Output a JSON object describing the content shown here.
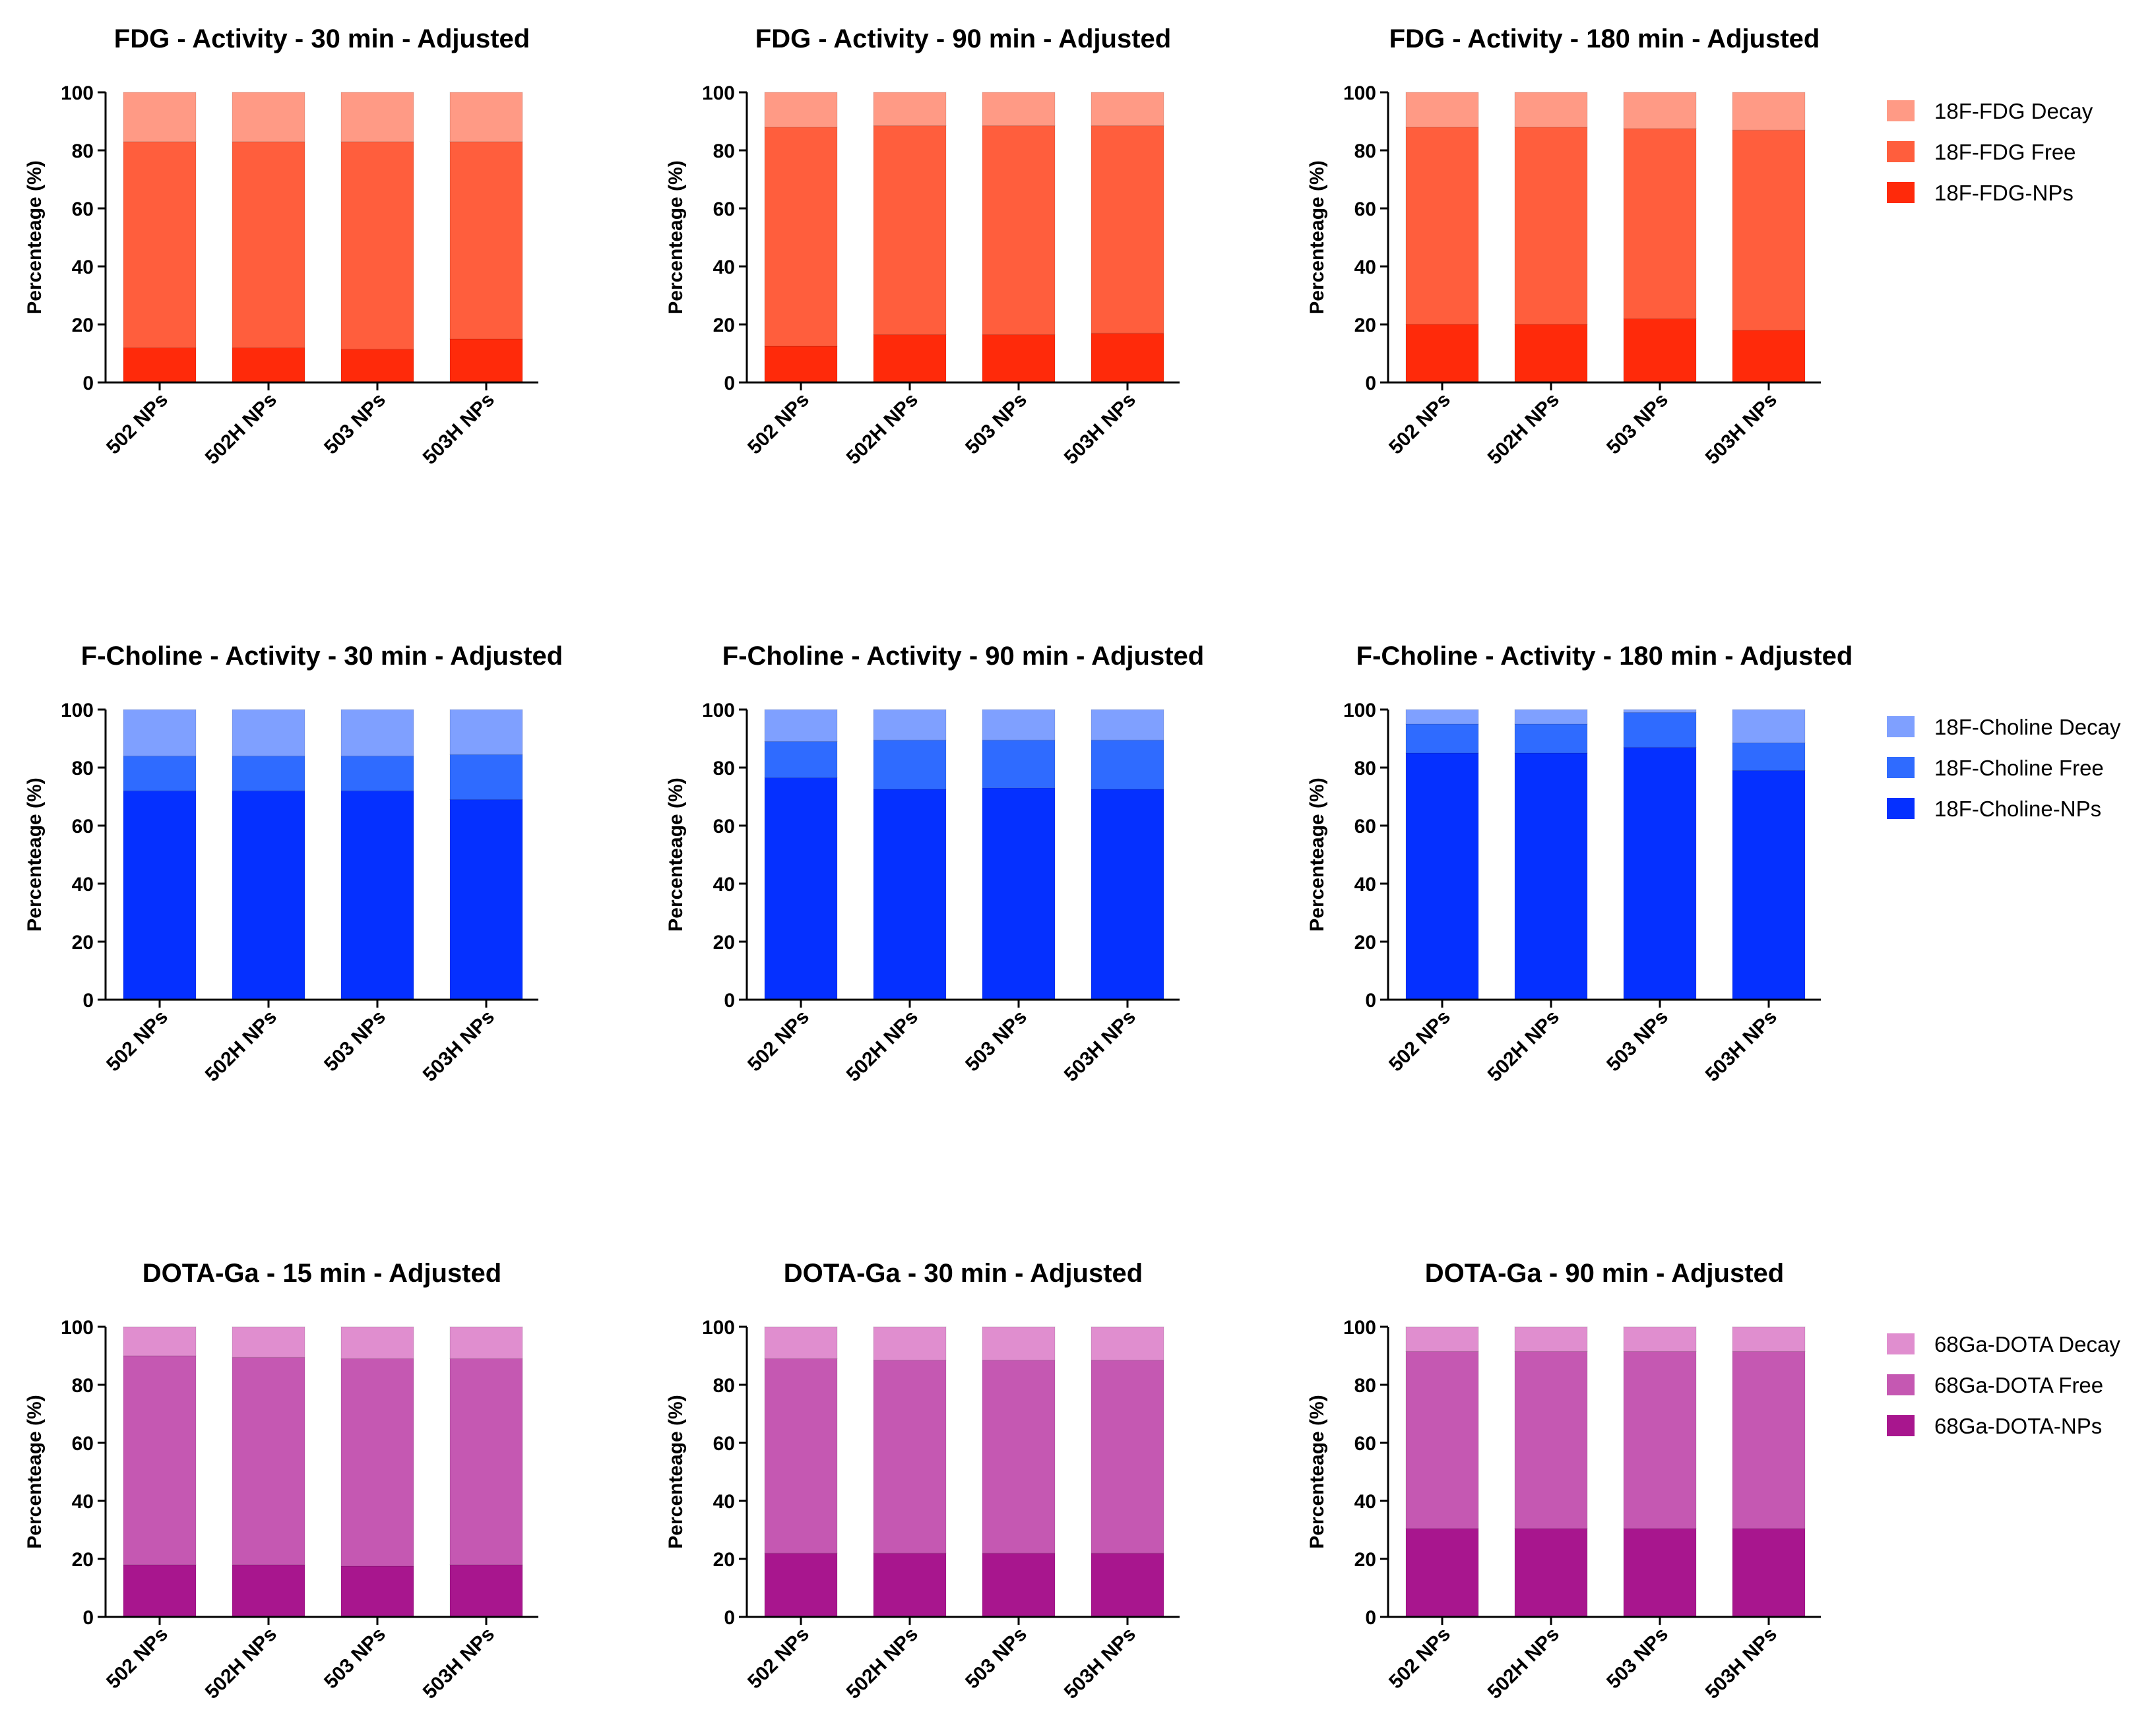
{
  "figure": {
    "ylabel": "Percenteage (%)",
    "categories": [
      "502 NPs",
      "502H NPs",
      "503 NPs",
      "503H NPs"
    ],
    "yticks": [
      0,
      20,
      40,
      60,
      80,
      100
    ]
  },
  "legends": [
    {
      "items": [
        {
          "label": "18F-FDG Decay",
          "color": "#FF9A85"
        },
        {
          "label": "18F-FDG Free",
          "color": "#FF5E3D"
        },
        {
          "label": "18F-FDG-NPs",
          "color": "#FF2A0A"
        }
      ]
    },
    {
      "items": [
        {
          "label": "18F-Choline Decay",
          "color": "#7FA0FF"
        },
        {
          "label": "18F-Choline Free",
          "color": "#2F6BFF"
        },
        {
          "label": "18F-Choline-NPs",
          "color": "#0530FF"
        }
      ]
    },
    {
      "items": [
        {
          "label": "68Ga-DOTA Decay",
          "color": "#E08ECF"
        },
        {
          "label": "68Ga-DOTA Free",
          "color": "#C558B2"
        },
        {
          "label": "68Ga-DOTA-NPs",
          "color": "#A8168E"
        }
      ]
    }
  ],
  "chart_data": [
    {
      "type": "bar",
      "stacked": true,
      "title": "FDG - Activity - 30 min - Adjusted",
      "ylabel": "Percenteage (%)",
      "ylim": [
        0,
        100
      ],
      "categories": [
        "502 NPs",
        "502H NPs",
        "503 NPs",
        "503H NPs"
      ],
      "series": [
        {
          "name": "18F-FDG-NPs",
          "color": "#FF2A0A",
          "values": [
            12,
            12,
            11.5,
            15
          ]
        },
        {
          "name": "18F-FDG Free",
          "color": "#FF5E3D",
          "values": [
            71,
            71,
            71.5,
            68
          ]
        },
        {
          "name": "18F-FDG Decay",
          "color": "#FF9A85",
          "values": [
            17,
            17,
            17,
            17
          ]
        }
      ]
    },
    {
      "type": "bar",
      "stacked": true,
      "title": "FDG - Activity - 90 min - Adjusted",
      "ylabel": "Percenteage (%)",
      "ylim": [
        0,
        100
      ],
      "categories": [
        "502 NPs",
        "502H NPs",
        "503 NPs",
        "503H NPs"
      ],
      "series": [
        {
          "name": "18F-FDG-NPs",
          "color": "#FF2A0A",
          "values": [
            12.5,
            16.5,
            16.5,
            17
          ]
        },
        {
          "name": "18F-FDG Free",
          "color": "#FF5E3D",
          "values": [
            75.5,
            72,
            72,
            71.5
          ]
        },
        {
          "name": "18F-FDG Decay",
          "color": "#FF9A85",
          "values": [
            12,
            11.5,
            11.5,
            11.5
          ]
        }
      ]
    },
    {
      "type": "bar",
      "stacked": true,
      "title": "FDG - Activity - 180 min - Adjusted",
      "ylabel": "Percenteage (%)",
      "ylim": [
        0,
        100
      ],
      "categories": [
        "502 NPs",
        "502H NPs",
        "503 NPs",
        "503H NPs"
      ],
      "series": [
        {
          "name": "18F-FDG-NPs",
          "color": "#FF2A0A",
          "values": [
            20,
            20,
            22,
            18
          ]
        },
        {
          "name": "18F-FDG Free",
          "color": "#FF5E3D",
          "values": [
            68,
            68,
            65.5,
            69
          ]
        },
        {
          "name": "18F-FDG Decay",
          "color": "#FF9A85",
          "values": [
            12,
            12,
            12.5,
            13
          ]
        }
      ]
    },
    {
      "type": "bar",
      "stacked": true,
      "title": "F-Choline - Activity - 30 min - Adjusted",
      "ylabel": "Percenteage (%)",
      "ylim": [
        0,
        100
      ],
      "categories": [
        "502 NPs",
        "502H NPs",
        "503 NPs",
        "503H NPs"
      ],
      "series": [
        {
          "name": "18F-Choline-NPs",
          "color": "#0530FF",
          "values": [
            72,
            72,
            72,
            69
          ]
        },
        {
          "name": "18F-Choline Free",
          "color": "#2F6BFF",
          "values": [
            12,
            12,
            12,
            15.5
          ]
        },
        {
          "name": "18F-Choline Decay",
          "color": "#7FA0FF",
          "values": [
            16,
            16,
            16,
            15.5
          ]
        }
      ]
    },
    {
      "type": "bar",
      "stacked": true,
      "title": "F-Choline - Activity - 90 min - Adjusted",
      "ylabel": "Percenteage (%)",
      "ylim": [
        0,
        100
      ],
      "categories": [
        "502 NPs",
        "502H NPs",
        "503 NPs",
        "503H NPs"
      ],
      "series": [
        {
          "name": "18F-Choline-NPs",
          "color": "#0530FF",
          "values": [
            76.5,
            72.5,
            73,
            72.5
          ]
        },
        {
          "name": "18F-Choline Free",
          "color": "#2F6BFF",
          "values": [
            12.5,
            17,
            16.5,
            17
          ]
        },
        {
          "name": "18F-Choline Decay",
          "color": "#7FA0FF",
          "values": [
            11,
            10.5,
            10.5,
            10.5
          ]
        }
      ]
    },
    {
      "type": "bar",
      "stacked": true,
      "title": "F-Choline - Activity - 180 min - Adjusted",
      "ylabel": "Percenteage (%)",
      "ylim": [
        0,
        100
      ],
      "categories": [
        "502 NPs",
        "502H NPs",
        "503 NPs",
        "503H NPs"
      ],
      "series": [
        {
          "name": "18F-Choline-NPs",
          "color": "#0530FF",
          "values": [
            85,
            85,
            87,
            79
          ]
        },
        {
          "name": "18F-Choline Free",
          "color": "#2F6BFF",
          "values": [
            10,
            10,
            12,
            9.5
          ]
        },
        {
          "name": "18F-Choline Decay",
          "color": "#7FA0FF",
          "values": [
            5,
            5,
            1,
            11.5
          ]
        }
      ]
    },
    {
      "type": "bar",
      "stacked": true,
      "title": "DOTA-Ga - 15 min - Adjusted",
      "ylabel": "Percenteage (%)",
      "ylim": [
        0,
        100
      ],
      "categories": [
        "502 NPs",
        "502H NPs",
        "503 NPs",
        "503H NPs"
      ],
      "series": [
        {
          "name": "68Ga-DOTA-NPs",
          "color": "#A8168E",
          "values": [
            18,
            18,
            17.5,
            18
          ]
        },
        {
          "name": "68Ga-DOTA Free",
          "color": "#C558B2",
          "values": [
            72,
            71.5,
            71.5,
            71
          ]
        },
        {
          "name": "68Ga-DOTA Decay",
          "color": "#E08ECF",
          "values": [
            10,
            10.5,
            11,
            11
          ]
        }
      ]
    },
    {
      "type": "bar",
      "stacked": true,
      "title": "DOTA-Ga - 30 min - Adjusted",
      "ylabel": "Percenteage (%)",
      "ylim": [
        0,
        100
      ],
      "categories": [
        "502 NPs",
        "502H NPs",
        "503 NPs",
        "503H NPs"
      ],
      "series": [
        {
          "name": "68Ga-DOTA-NPs",
          "color": "#A8168E",
          "values": [
            22,
            22,
            22,
            22
          ]
        },
        {
          "name": "68Ga-DOTA Free",
          "color": "#C558B2",
          "values": [
            67,
            66.5,
            66.5,
            66.5
          ]
        },
        {
          "name": "68Ga-DOTA Decay",
          "color": "#E08ECF",
          "values": [
            11,
            11.5,
            11.5,
            11.5
          ]
        }
      ]
    },
    {
      "type": "bar",
      "stacked": true,
      "title": "DOTA-Ga - 90 min - Adjusted",
      "ylabel": "Percenteage (%)",
      "ylim": [
        0,
        100
      ],
      "categories": [
        "502 NPs",
        "502H NPs",
        "503 NPs",
        "503H NPs"
      ],
      "series": [
        {
          "name": "68Ga-DOTA-NPs",
          "color": "#A8168E",
          "values": [
            30.5,
            30.5,
            30.5,
            30.5
          ]
        },
        {
          "name": "68Ga-DOTA Free",
          "color": "#C558B2",
          "values": [
            61,
            61,
            61,
            61
          ]
        },
        {
          "name": "68Ga-DOTA Decay",
          "color": "#E08ECF",
          "values": [
            8.5,
            8.5,
            8.5,
            8.5
          ]
        }
      ]
    }
  ]
}
